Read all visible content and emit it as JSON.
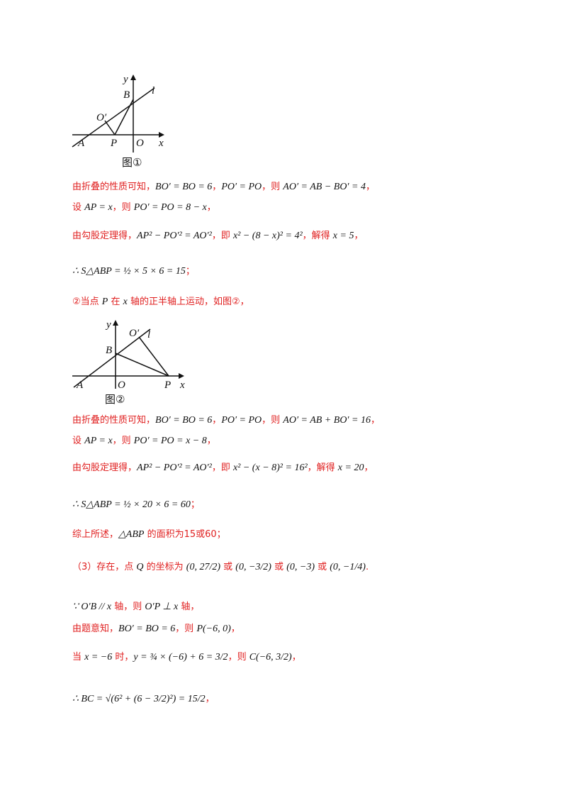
{
  "figure1": {
    "labels": {
      "y": "y",
      "x": "x",
      "B": "B",
      "l": "l",
      "Oprime": "O′",
      "A": "A",
      "P": "P",
      "O": "O"
    },
    "caption": "图①"
  },
  "figure2": {
    "labels": {
      "y": "y",
      "x": "x",
      "B": "B",
      "l": "l",
      "Oprime": "O′",
      "A": "A",
      "P": "P",
      "O": "O"
    },
    "caption": "图②"
  },
  "lines": [
    {
      "parts": [
        [
          "r",
          "由折叠的性质可知，"
        ],
        [
          "m",
          "BO′ = BO = 6"
        ],
        [
          "r",
          "，"
        ],
        [
          "m",
          "PO′ = PO"
        ],
        [
          "r",
          "，则 "
        ],
        [
          "m",
          "AO′ = AB − BO′ = 4"
        ],
        [
          "r",
          "，"
        ]
      ]
    },
    {
      "parts": [
        [
          "r",
          "设 "
        ],
        [
          "m",
          "AP = x"
        ],
        [
          "r",
          "，则 "
        ],
        [
          "m",
          "PO′ = PO = 8 − x"
        ],
        [
          "r",
          "，"
        ]
      ]
    },
    {
      "parts": [
        [
          "r",
          "由勾股定理得，"
        ],
        [
          "m",
          "AP² − PO′² = AO′²"
        ],
        [
          "r",
          "，即 "
        ],
        [
          "m",
          "x² − (8 − x)² = 4²"
        ],
        [
          "r",
          "，解得 "
        ],
        [
          "m",
          "x = 5"
        ],
        [
          "r",
          "，"
        ]
      ]
    },
    {
      "parts": [
        [
          "m",
          "∴ S△ABP = ½ × 5 × 6 = 15"
        ],
        [
          "r",
          "；"
        ]
      ]
    },
    {
      "parts": [
        [
          "r",
          "②当点 "
        ],
        [
          "m",
          "P"
        ],
        [
          "r",
          " 在 "
        ],
        [
          "m",
          "x"
        ],
        [
          "r",
          " 轴的正半轴上运动，如图②，"
        ]
      ]
    },
    {
      "parts": [
        [
          "r",
          "由折叠的性质可知，"
        ],
        [
          "m",
          "BO′ = BO = 6"
        ],
        [
          "r",
          "，"
        ],
        [
          "m",
          "PO′ = PO"
        ],
        [
          "r",
          "，则 "
        ],
        [
          "m",
          "AO′ = AB + BO′ = 16"
        ],
        [
          "r",
          "，"
        ]
      ]
    },
    {
      "parts": [
        [
          "r",
          "设 "
        ],
        [
          "m",
          "AP = x"
        ],
        [
          "r",
          "，则 "
        ],
        [
          "m",
          "PO′ = PO = x − 8"
        ],
        [
          "r",
          "，"
        ]
      ]
    },
    {
      "parts": [
        [
          "r",
          "由勾股定理得，"
        ],
        [
          "m",
          "AP² − PO′² = AO′²"
        ],
        [
          "r",
          "，即 "
        ],
        [
          "m",
          "x² − (x − 8)² = 16²"
        ],
        [
          "r",
          "，解得 "
        ],
        [
          "m",
          "x = 20"
        ],
        [
          "r",
          "，"
        ]
      ]
    },
    {
      "parts": [
        [
          "m",
          "∴ S△ABP = ½ × 20 × 6 = 60"
        ],
        [
          "r",
          "；"
        ]
      ]
    },
    {
      "parts": [
        [
          "r",
          "综上所述，"
        ],
        [
          "m",
          "△ABP"
        ],
        [
          "r",
          " 的面积为15或60；"
        ]
      ]
    },
    {
      "parts": [
        [
          "r",
          "（3）存在，点 "
        ],
        [
          "m",
          "Q"
        ],
        [
          "r",
          " 的坐标为 "
        ],
        [
          "m",
          "(0, 27/2)"
        ],
        [
          "r",
          " 或 "
        ],
        [
          "m",
          "(0, −3/2)"
        ],
        [
          "r",
          " 或 "
        ],
        [
          "m",
          "(0, −3)"
        ],
        [
          "r",
          " 或 "
        ],
        [
          "m",
          "(0, −1/4)"
        ],
        [
          "r",
          "."
        ]
      ]
    },
    {
      "parts": [
        [
          "m",
          "∵ O′B // x"
        ],
        [
          "r",
          " 轴，则 "
        ],
        [
          "m",
          "O′P ⊥ x"
        ],
        [
          "r",
          " 轴，"
        ]
      ]
    },
    {
      "parts": [
        [
          "r",
          "由题意知，"
        ],
        [
          "m",
          "BO′ = BO = 6"
        ],
        [
          "r",
          "，则 "
        ],
        [
          "m",
          "P(−6, 0)"
        ],
        [
          "r",
          "，"
        ]
      ]
    },
    {
      "parts": [
        [
          "r",
          "当 "
        ],
        [
          "m",
          "x = −6"
        ],
        [
          "r",
          " 时，"
        ],
        [
          "m",
          "y = ¾ × (−6) + 6 = 3/2"
        ],
        [
          "r",
          "，则 "
        ],
        [
          "m",
          "C(−6, 3/2)"
        ],
        [
          "r",
          "，"
        ]
      ]
    },
    {
      "parts": [
        [
          "m",
          "∴ BC = √(6² + (6 − 3/2)²) = 15/2"
        ],
        [
          "r",
          "，"
        ]
      ]
    }
  ]
}
